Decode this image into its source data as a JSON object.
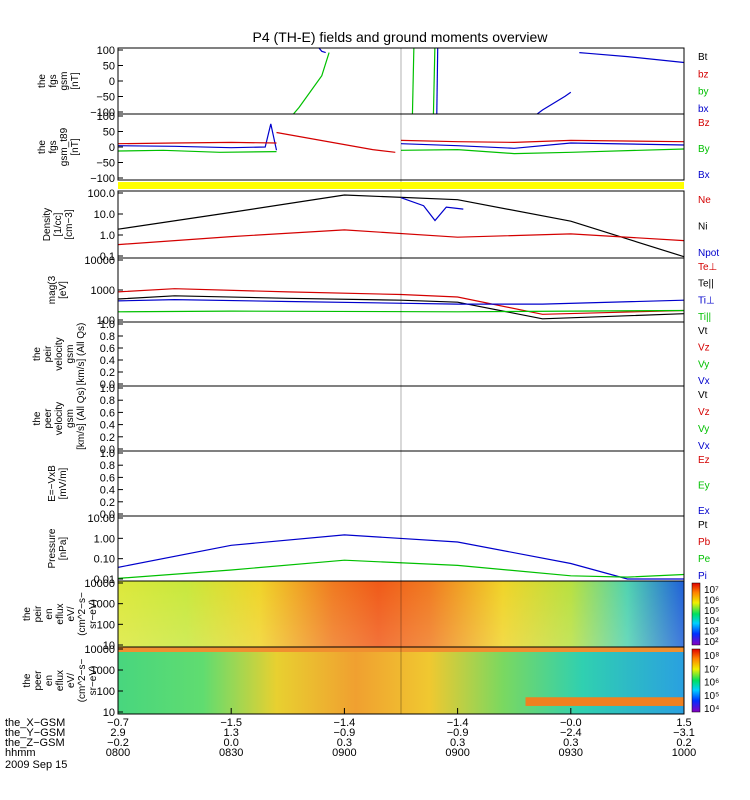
{
  "chart_data": {
    "type": "line",
    "title": "P4 (TH-E) fields and ground moments overview",
    "panels": [
      {
        "ylabel": [
          "the",
          "fgs",
          "gsm",
          "[nT]"
        ],
        "ticks": [
          "100",
          "50",
          "0",
          "−50",
          "−100"
        ],
        "legend": [
          {
            "name": "Bt",
            "color": "#000000"
          },
          {
            "name": "bz",
            "color": "#d40000"
          },
          {
            "name": "by",
            "color": "#00c000"
          },
          {
            "name": "bx",
            "color": "#0000cc"
          }
        ],
        "series": [
          {
            "color": "#0000cc",
            "pts": [
              [
                0.35,
                1.05
              ],
              [
                0.36,
                0.95
              ],
              [
                0.367,
                0.93
              ]
            ]
          },
          {
            "color": "#0000cc",
            "pts": [
              [
                0.563,
                -0.1
              ],
              [
                0.565,
                1.1
              ]
            ]
          },
          {
            "color": "#0000cc",
            "pts": [
              [
                0.725,
                -0.1
              ],
              [
                0.75,
                0.06
              ],
              [
                0.79,
                0.27
              ],
              [
                0.8,
                0.33
              ]
            ]
          },
          {
            "color": "#0000cc",
            "pts": [
              [
                0.815,
                0.93
              ],
              [
                0.83,
                0.92
              ],
              [
                0.9,
                0.87
              ],
              [
                1.0,
                0.78
              ]
            ]
          },
          {
            "color": "#00c000",
            "pts": [
              [
                0.3,
                -0.1
              ],
              [
                0.32,
                0.1
              ],
              [
                0.36,
                0.58
              ],
              [
                0.373,
                0.93
              ]
            ]
          },
          {
            "color": "#00c000",
            "pts": [
              [
                0.52,
                -0.1
              ],
              [
                0.523,
                1.1
              ]
            ]
          },
          {
            "color": "#00c000",
            "pts": [
              [
                0.557,
                -0.1
              ],
              [
                0.56,
                1.1
              ]
            ]
          }
        ]
      },
      {
        "ylabel": [
          "the",
          "fgs",
          "gsm_t89",
          "[nT]"
        ],
        "ticks": [
          "100",
          "50",
          "0",
          "−50",
          "−100"
        ],
        "legend": [
          {
            "name": "Bz",
            "color": "#d40000"
          },
          {
            "name": "By",
            "color": "#00c000"
          },
          {
            "name": "Bx",
            "color": "#0000cc"
          }
        ],
        "series": [
          {
            "color": "#0000cc",
            "pts": [
              [
                0,
                0.52
              ],
              [
                0.1,
                0.51
              ],
              [
                0.2,
                0.49
              ],
              [
                0.26,
                0.5
              ],
              [
                0.27,
                0.85
              ],
              [
                0.28,
                0.45
              ]
            ]
          },
          {
            "color": "#d40000",
            "pts": [
              [
                0,
                0.55
              ],
              [
                0.1,
                0.56
              ],
              [
                0.2,
                0.57
              ],
              [
                0.28,
                0.56
              ]
            ]
          },
          {
            "color": "#00c000",
            "pts": [
              [
                0,
                0.44
              ],
              [
                0.08,
                0.45
              ],
              [
                0.18,
                0.42
              ],
              [
                0.28,
                0.43
              ]
            ]
          },
          {
            "color": "#d40000",
            "pts": [
              [
                0.28,
                0.72
              ],
              [
                0.45,
                0.46
              ],
              [
                0.49,
                0.42
              ]
            ]
          },
          {
            "color": "#0000cc",
            "pts": [
              [
                0.5,
                0.55
              ],
              [
                0.6,
                0.52
              ],
              [
                0.7,
                0.48
              ],
              [
                0.8,
                0.56
              ],
              [
                1.0,
                0.53
              ]
            ]
          },
          {
            "color": "#d40000",
            "pts": [
              [
                0.5,
                0.6
              ],
              [
                0.6,
                0.58
              ],
              [
                0.7,
                0.57
              ],
              [
                0.8,
                0.6
              ],
              [
                1.0,
                0.58
              ]
            ]
          },
          {
            "color": "#00c000",
            "pts": [
              [
                0.5,
                0.45
              ],
              [
                0.6,
                0.46
              ],
              [
                0.7,
                0.4
              ],
              [
                0.8,
                0.42
              ],
              [
                1.0,
                0.47
              ]
            ]
          }
        ]
      },
      {
        "ylabel": [
          "Density",
          "[1/cc]",
          "[cm−3]"
        ],
        "ticks": [
          "100.0",
          "10.0",
          "1.0",
          "0.1"
        ],
        "legend": [
          {
            "name": "Ne",
            "color": "#d40000"
          },
          {
            "name": "Ni",
            "color": "#000000"
          },
          {
            "name": "Npot",
            "color": "#0000cc"
          }
        ],
        "series": [
          {
            "color": "#000000",
            "pts": [
              [
                0,
                0.43
              ],
              [
                0.2,
                0.68
              ],
              [
                0.4,
                0.94
              ],
              [
                0.6,
                0.87
              ],
              [
                0.8,
                0.55
              ],
              [
                1.0,
                0.02
              ]
            ]
          },
          {
            "color": "#d40000",
            "pts": [
              [
                0,
                0.2
              ],
              [
                0.2,
                0.32
              ],
              [
                0.4,
                0.42
              ],
              [
                0.6,
                0.31
              ],
              [
                0.8,
                0.36
              ],
              [
                1.0,
                0.26
              ]
            ]
          },
          {
            "color": "#0000cc",
            "pts": [
              [
                0.5,
                0.9
              ],
              [
                0.54,
                0.78
              ],
              [
                0.56,
                0.56
              ],
              [
                0.58,
                0.76
              ],
              [
                0.61,
                0.73
              ]
            ]
          }
        ]
      },
      {
        "ylabel": [
          "mag(3",
          "[eV]"
        ],
        "ticks": [
          "10000",
          "1000",
          "100"
        ],
        "legend": [
          {
            "name": "Te⊥",
            "color": "#d40000"
          },
          {
            "name": "Te||",
            "color": "#000000"
          },
          {
            "name": "Ti⊥",
            "color": "#0000cc"
          },
          {
            "name": "Ti||",
            "color": "#00c000"
          }
        ],
        "series": [
          {
            "color": "#d40000",
            "pts": [
              [
                0,
                0.47
              ],
              [
                0.1,
                0.52
              ],
              [
                0.3,
                0.47
              ],
              [
                0.5,
                0.43
              ],
              [
                0.6,
                0.39
              ],
              [
                0.75,
                0.12
              ],
              [
                1.0,
                0.18
              ]
            ]
          },
          {
            "color": "#000000",
            "pts": [
              [
                0,
                0.36
              ],
              [
                0.1,
                0.41
              ],
              [
                0.3,
                0.37
              ],
              [
                0.5,
                0.34
              ],
              [
                0.6,
                0.31
              ],
              [
                0.75,
                0.05
              ],
              [
                1.0,
                0.13
              ]
            ]
          },
          {
            "color": "#0000cc",
            "pts": [
              [
                0,
                0.33
              ],
              [
                0.1,
                0.35
              ],
              [
                0.3,
                0.32
              ],
              [
                0.6,
                0.28
              ],
              [
                0.75,
                0.28
              ],
              [
                1.0,
                0.34
              ]
            ]
          },
          {
            "color": "#00c000",
            "pts": [
              [
                0,
                0.16
              ],
              [
                0.2,
                0.17
              ],
              [
                0.6,
                0.16
              ],
              [
                1.0,
                0.18
              ]
            ]
          }
        ]
      },
      {
        "ylabel": [
          "the",
          "peir",
          "velocity",
          "gsm",
          "[km/s] (All Qs)"
        ],
        "ticks": [
          "1.0",
          "0.8",
          "0.6",
          "0.4",
          "0.2",
          "0.0"
        ],
        "legend": [
          {
            "name": "Vt",
            "color": "#000000"
          },
          {
            "name": "Vz",
            "color": "#d40000"
          },
          {
            "name": "Vy",
            "color": "#00c000"
          },
          {
            "name": "Vx",
            "color": "#0000cc"
          }
        ],
        "series": []
      },
      {
        "ylabel": [
          "the",
          "peer",
          "velocity",
          "gsm",
          "[km/s] (All Qs)"
        ],
        "ticks": [
          "1.0",
          "0.8",
          "0.6",
          "0.4",
          "0.2",
          "0.0"
        ],
        "legend": [
          {
            "name": "Vt",
            "color": "#000000"
          },
          {
            "name": "Vz",
            "color": "#d40000"
          },
          {
            "name": "Vy",
            "color": "#00c000"
          },
          {
            "name": "Vx",
            "color": "#0000cc"
          }
        ],
        "series": []
      },
      {
        "ylabel": [
          "E=−VxB",
          "[mV/m]"
        ],
        "ticks": [
          "1.0",
          "0.8",
          "0.6",
          "0.4",
          "0.2",
          "0.0"
        ],
        "legend": [
          {
            "name": "Ez",
            "color": "#d40000"
          },
          {
            "name": "Ey",
            "color": "#00c000"
          },
          {
            "name": "Ex",
            "color": "#0000cc"
          }
        ],
        "series": []
      },
      {
        "ylabel": [
          "Pressure",
          "[nPa]"
        ],
        "ticks": [
          "10.00",
          "1.00",
          "0.10",
          "0.01"
        ],
        "legend": [
          {
            "name": "Pt",
            "color": "#000000"
          },
          {
            "name": "Pb",
            "color": "#d40000"
          },
          {
            "name": "Pe",
            "color": "#00c000"
          },
          {
            "name": "Pi",
            "color": "#0000cc"
          }
        ],
        "series": [
          {
            "color": "#0000cc",
            "pts": [
              [
                0,
                0.21
              ],
              [
                0.2,
                0.55
              ],
              [
                0.4,
                0.71
              ],
              [
                0.6,
                0.6
              ],
              [
                0.8,
                0.27
              ],
              [
                0.9,
                0.03
              ],
              [
                1.0,
                0.03
              ]
            ]
          },
          {
            "color": "#00c000",
            "pts": [
              [
                0,
                0.04
              ],
              [
                0.2,
                0.17
              ],
              [
                0.4,
                0.32
              ],
              [
                0.6,
                0.24
              ],
              [
                0.8,
                0.08
              ],
              [
                0.9,
                0.06
              ],
              [
                1.0,
                0.1
              ]
            ]
          }
        ]
      },
      {
        "ylabel": [
          "the",
          "peir",
          "en",
          "eflux",
          "eV/",
          "(cm^2−s−",
          "sr−eV)"
        ],
        "ticks": [
          "10000",
          "1000",
          "100",
          "10"
        ],
        "colorbar": [
          "10⁷",
          "10⁶",
          "10⁵",
          "10⁴",
          "10³",
          "10²"
        ]
      },
      {
        "ylabel": [
          "the",
          "peer",
          "en",
          "eflux",
          "eV/",
          "(cm^2−s−",
          "sr−eV)"
        ],
        "ticks": [
          "10000",
          "1000",
          "100",
          "10"
        ],
        "colorbar": [
          "10⁸",
          "10⁷",
          "10⁶",
          "10⁵",
          "10⁴"
        ]
      }
    ],
    "xaxis": {
      "rows": [
        {
          "label": "the_X−GSM",
          "values": [
            "−0.7",
            "−1.5",
            "−1.4",
            "−1.4",
            "−0.0",
            "1.5"
          ]
        },
        {
          "label": "the_Y−GSM",
          "values": [
            "2.9",
            "1.3",
            "−0.9",
            "−0.9",
            "−2.4",
            "−3.1"
          ]
        },
        {
          "label": "the_Z−GSM",
          "values": [
            "−0.2",
            "0.0",
            "0.3",
            "0.3",
            "0.3",
            "0.2"
          ]
        },
        {
          "label": "hhmm",
          "values": [
            "0800",
            "0830",
            "0900",
            "0900",
            "0930",
            "1000"
          ]
        }
      ],
      "date": "2009 Sep 15"
    }
  }
}
